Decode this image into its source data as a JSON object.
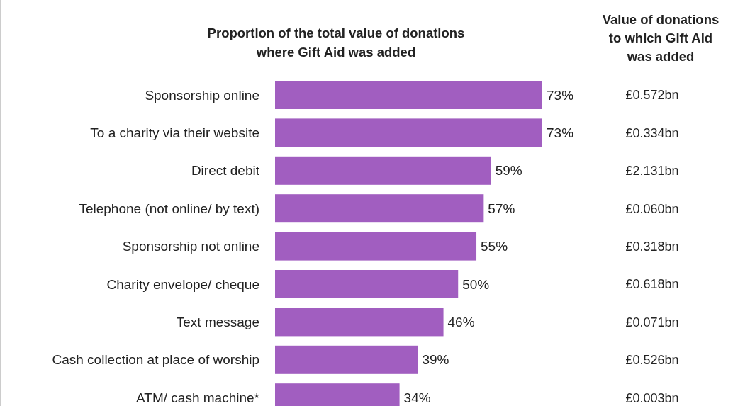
{
  "chart_data": {
    "type": "bar",
    "orientation": "horizontal",
    "title": "Proportion of the total value of donations\nwhere Gift Aid was added",
    "categories": [
      "Sponsorship online",
      "To a charity via their website",
      "Direct debit",
      "Telephone (not online/ by text)",
      "Sponsorship not online",
      "Charity envelope/ cheque",
      "Text message",
      "Cash collection at place of worship",
      "ATM/ cash machine*"
    ],
    "values": [
      73,
      73,
      59,
      57,
      55,
      50,
      46,
      39,
      34
    ],
    "value_labels": [
      "73%",
      "73%",
      "59%",
      "57%",
      "55%",
      "50%",
      "46%",
      "39%",
      "34%"
    ],
    "color": "#a15ec0",
    "annotations": [
      "Value of donations\nto which Gift Aid\nwas added",
      "£0.572bn",
      "£0.334bn",
      "£2.131bn",
      "£0.060bn",
      "£0.318bn",
      "£0.618bn",
      "£0.071bn",
      "£0.526bn",
      "£0.003bn"
    ]
  }
}
